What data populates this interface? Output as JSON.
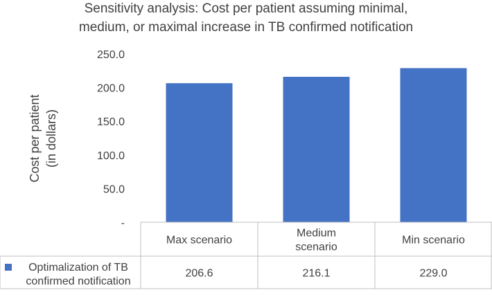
{
  "chart_data": {
    "type": "bar",
    "title_lines": [
      "Sensitivity analysis: Cost per patient assuming minimal,",
      "medium, or maximal increase in TB confirmed notification"
    ],
    "ylabel_lines": [
      "Cost per patient",
      "(in dollars)"
    ],
    "categories": [
      [
        "Max scenario"
      ],
      [
        "Medium",
        "scenario"
      ],
      [
        "Min scenario"
      ]
    ],
    "series": [
      {
        "name_lines": [
          "Optimalization of TB",
          "confirmed notification"
        ],
        "values": [
          206.6,
          216.1,
          229.0
        ],
        "value_labels": [
          "206.6",
          "216.1",
          "229.0"
        ],
        "color": "#4472C4"
      }
    ],
    "ylim": [
      0,
      250
    ],
    "yticks": [
      0,
      50,
      100,
      150,
      200,
      250
    ],
    "ytick_labels": [
      "-",
      "50.0",
      "100.0",
      "150.0",
      "200.0",
      "250.0"
    ],
    "grid": false,
    "legend": "data-table"
  }
}
